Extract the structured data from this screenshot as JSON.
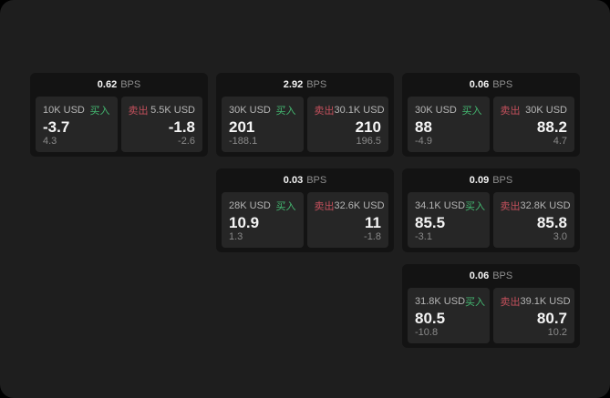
{
  "labels": {
    "bps": "BPS",
    "buy": "买入",
    "sell": "卖出"
  },
  "colors": {
    "background": "#000000",
    "page_bg": "#1e1e1e",
    "card_bg": "#131313",
    "panel_bg": "#262626",
    "buy": "#44b871",
    "sell": "#c4505c"
  },
  "cards": [
    {
      "bps": "0.62",
      "buy": {
        "amount": "10K USD",
        "value": "-3.7",
        "delta": "4.3"
      },
      "sell": {
        "amount": "5.5K USD",
        "value": "-1.8",
        "delta": "-2.6"
      }
    },
    {
      "bps": "2.92",
      "buy": {
        "amount": "30K USD",
        "value": "201",
        "delta": "-188.1"
      },
      "sell": {
        "amount": "30.1K USD",
        "value": "210",
        "delta": "196.5"
      }
    },
    {
      "bps": "0.06",
      "buy": {
        "amount": "30K USD",
        "value": "88",
        "delta": "-4.9"
      },
      "sell": {
        "amount": "30K USD",
        "value": "88.2",
        "delta": "4.7"
      }
    },
    {
      "bps": "0.03",
      "buy": {
        "amount": "28K USD",
        "value": "10.9",
        "delta": "1.3"
      },
      "sell": {
        "amount": "32.6K USD",
        "value": "11",
        "delta": "-1.8"
      }
    },
    {
      "bps": "0.09",
      "buy": {
        "amount": "34.1K USD",
        "value": "85.5",
        "delta": "-3.1"
      },
      "sell": {
        "amount": "32.8K USD",
        "value": "85.8",
        "delta": "3.0"
      }
    },
    {
      "bps": "0.06",
      "buy": {
        "amount": "31.8K USD",
        "value": "80.5",
        "delta": "-10.8"
      },
      "sell": {
        "amount": "39.1K USD",
        "value": "80.7",
        "delta": "10.2"
      }
    }
  ]
}
